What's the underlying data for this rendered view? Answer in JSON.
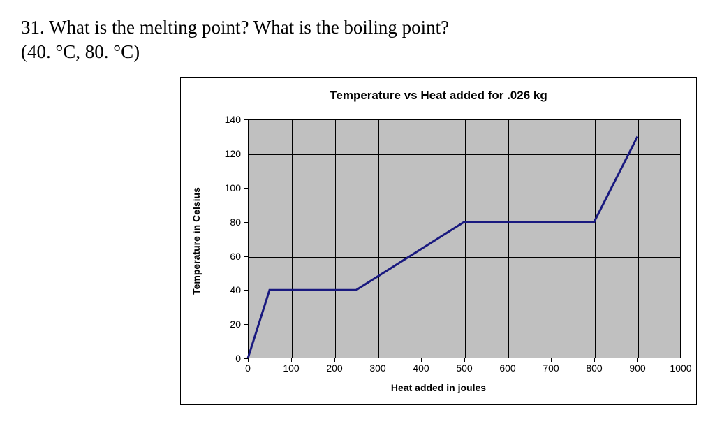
{
  "question": {
    "line1": "31. What is the melting point?  What is the boiling point?",
    "line2": "(40. °C, 80. °C)"
  },
  "chart": {
    "type": "line",
    "title": "Temperature vs Heat added for .026 kg",
    "title_fontsize": 17,
    "title_weight": "bold",
    "xlabel": "Heat added in joules",
    "ylabel": "Temperature in Celsius",
    "label_fontsize": 14,
    "label_weight": "bold",
    "tick_fontsize": 14,
    "plot_background": "#c0c0c0",
    "border_color": "#000000",
    "grid_color": "#000000",
    "line_color": "#19197f",
    "line_width": 3,
    "xlim": [
      0,
      1000
    ],
    "ylim": [
      0,
      140
    ],
    "xticks": [
      0,
      100,
      200,
      300,
      400,
      500,
      600,
      700,
      800,
      900,
      1000
    ],
    "yticks": [
      0,
      20,
      40,
      60,
      80,
      100,
      120,
      140
    ],
    "grid": true,
    "data": {
      "x": [
        0,
        50,
        250,
        500,
        800,
        900
      ],
      "y": [
        0,
        40,
        40,
        80,
        80,
        130
      ]
    }
  }
}
